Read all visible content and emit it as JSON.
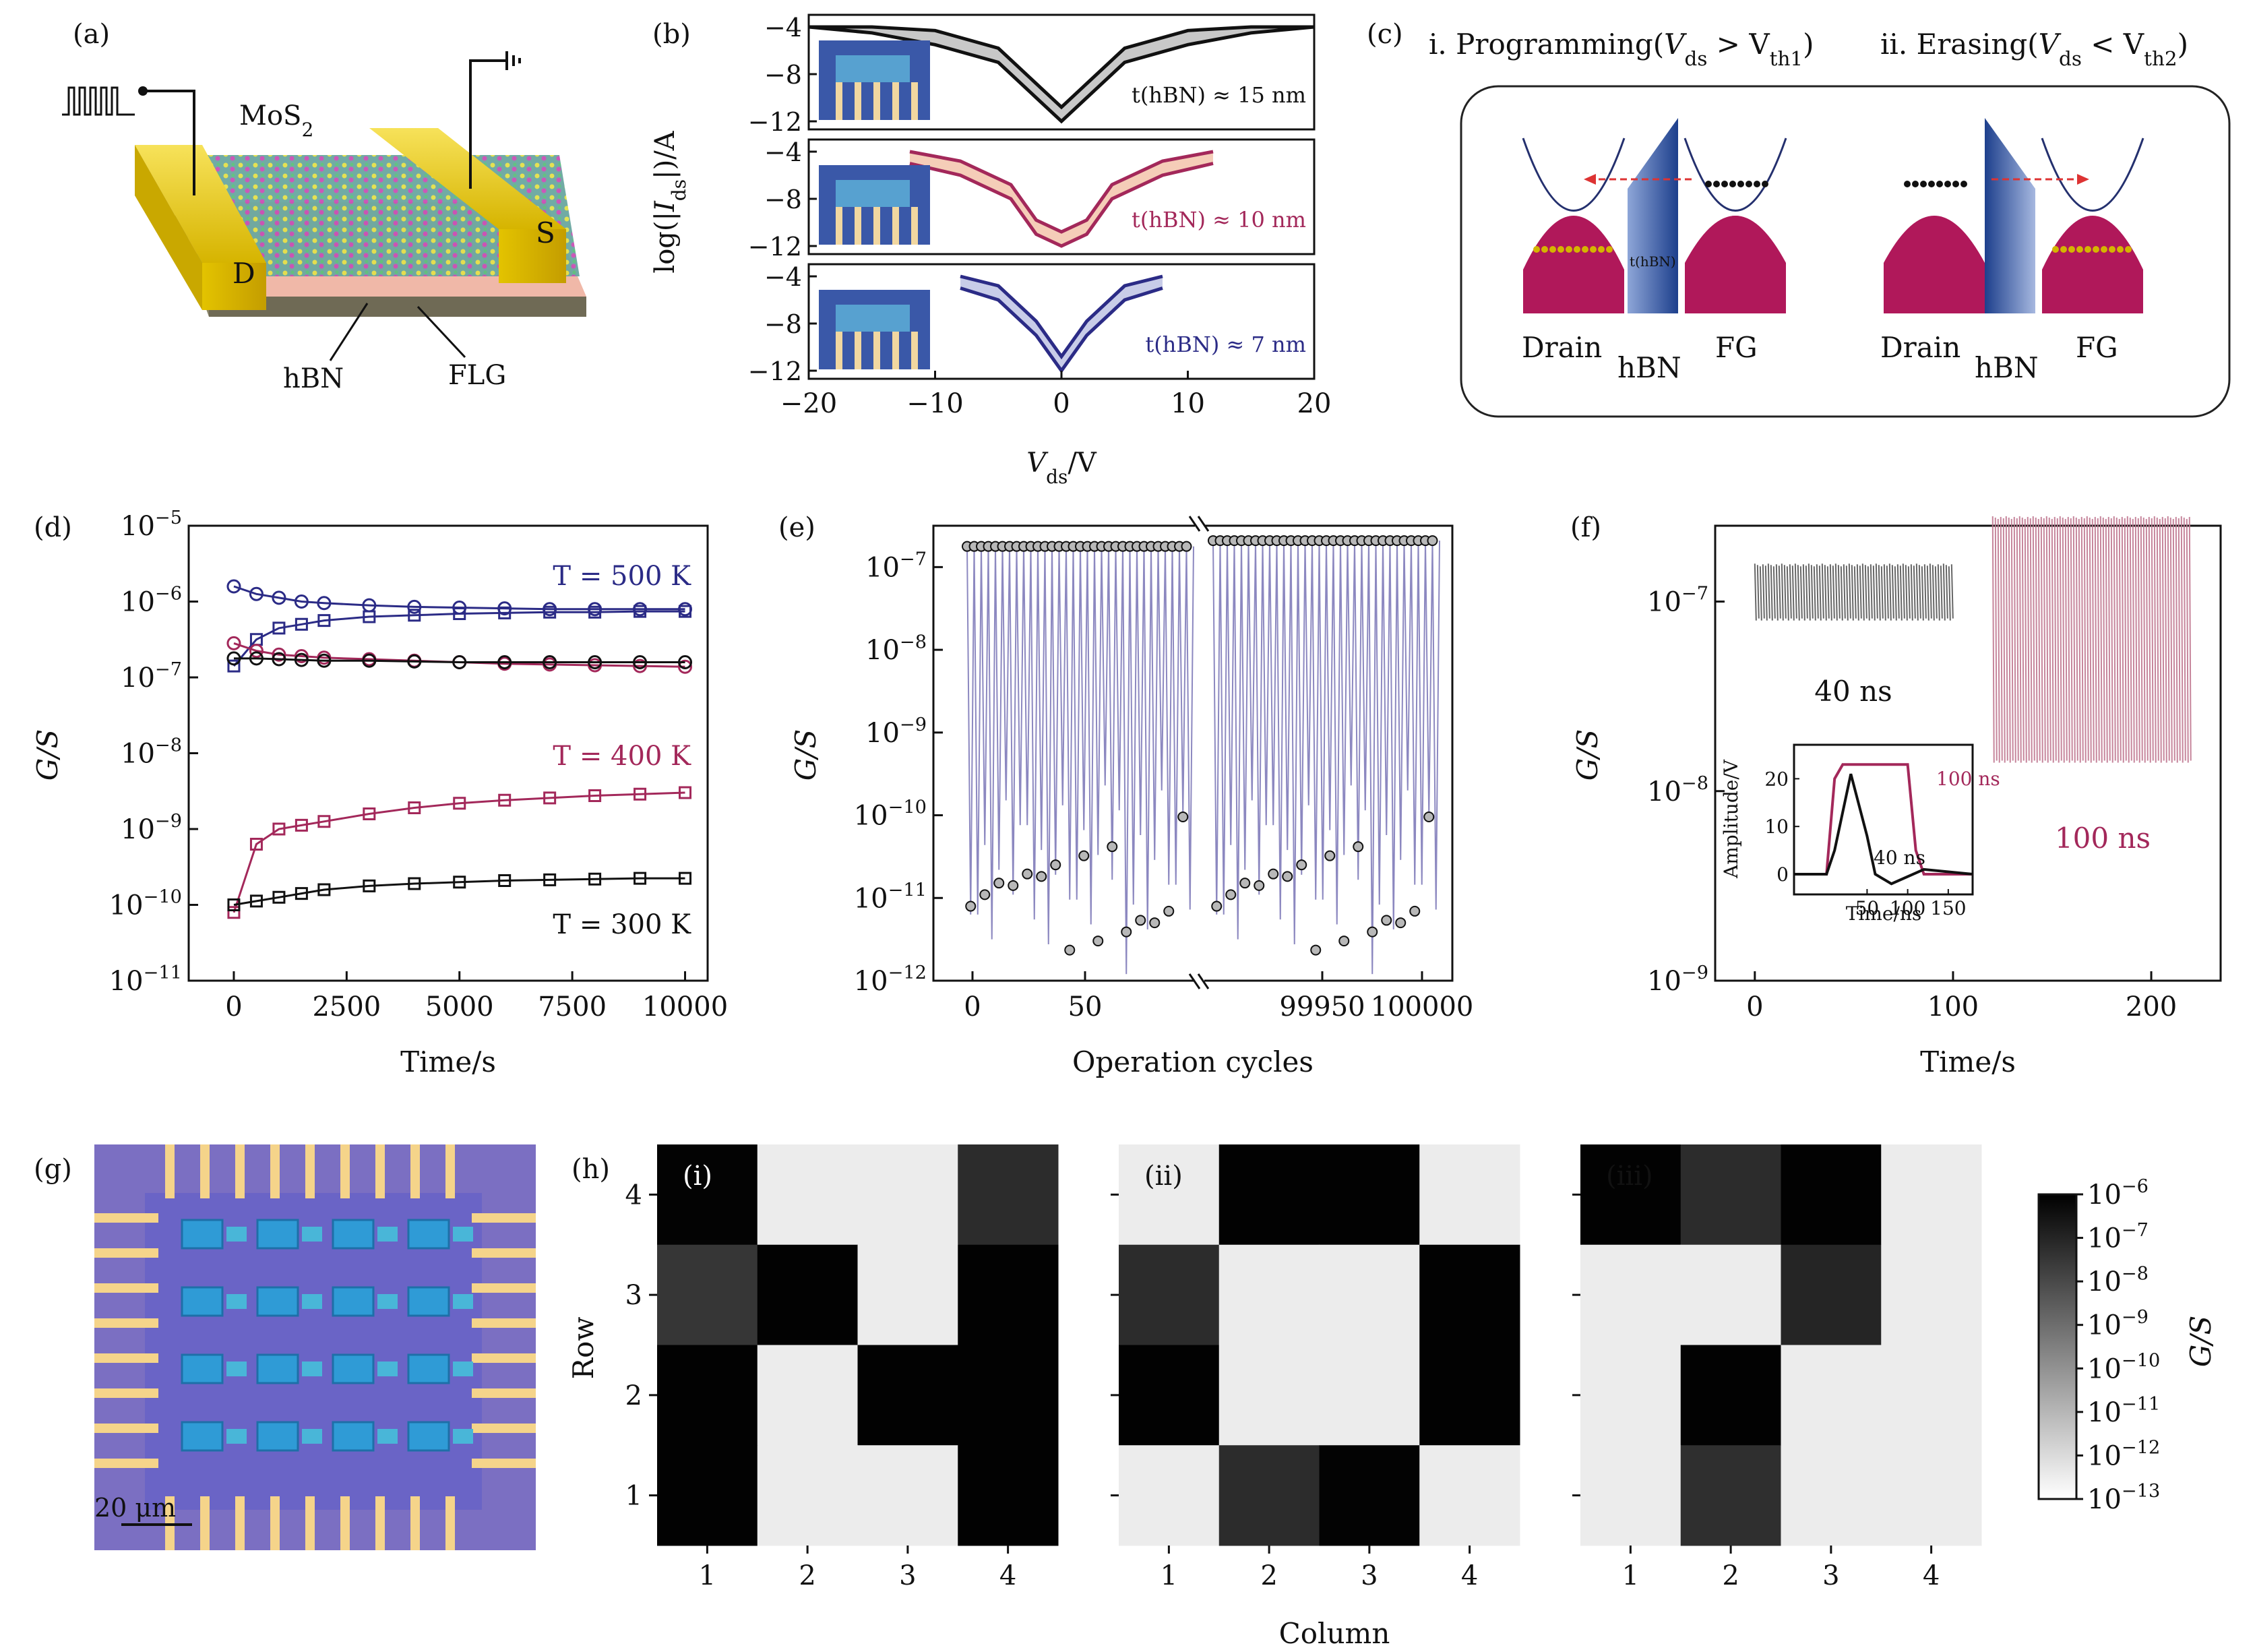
{
  "panels": {
    "a": {
      "label": "(a)",
      "mos2": "MoS",
      "mos2_sub": "2",
      "drain": "D",
      "source": "S",
      "hbn": "hBN",
      "flg": "FLG"
    },
    "b": {
      "label": "(b)",
      "ylabel": "log(|I",
      "ylabel_sub": "ds",
      "ylabel_end": "|)/A",
      "xlabel": "V",
      "xlabel_sub": "ds",
      "xlabel_end": "/V",
      "ann": [
        "t(hBN) ≈ 15 nm",
        "t(hBN) ≈ 10 nm",
        "t(hBN) ≈ 7 nm"
      ],
      "colors": [
        "#111111",
        "#a3285a",
        "#2b2b86"
      ]
    },
    "c": {
      "label": "(c)",
      "title1": "i. Programming(V",
      "title1_sub": "ds",
      "title1_mid": " > V",
      "title1_sub2": "th1",
      "title1_end": ")",
      "title2": "ii. Erasing(V",
      "title2_sub": "ds",
      "title2_mid": " < V",
      "title2_sub2": "th2",
      "title2_end": ")",
      "drain": "Drain",
      "hbn": "hBN",
      "fg": "FG",
      "thbn": "t(hBN)"
    },
    "d": {
      "label": "(d)",
      "ylabel": "G/S",
      "xlabel": "Time/s",
      "t500": "T = 500 K",
      "t400": "T = 400 K",
      "t300": "T = 300 K"
    },
    "e": {
      "label": "(e)",
      "ylabel": "G/S",
      "xlabel": "Operation cycles"
    },
    "f": {
      "label": "(f)",
      "ylabel": "G/S",
      "xlabel": "Time/s",
      "l40": "40 ns",
      "l100": "100 ns",
      "inset_ylabel": "Amplitude/V",
      "inset_xlabel": "Time/ns",
      "inset_100": "100 ns",
      "inset_40": "40 ns"
    },
    "g": {
      "label": "(g)",
      "scale": "20 μm"
    },
    "h": {
      "label": "(h)",
      "ylabel": "Row",
      "xlabel": "Column",
      "cbar_label": "G/S",
      "sub": [
        "(i)",
        "(ii)",
        "(iii)"
      ]
    }
  },
  "chart_data": [
    {
      "panel": "b",
      "type": "line",
      "xlabel": "Vds/V",
      "ylabel": "log(|Ids|)/A",
      "xlim": [
        -20,
        20
      ],
      "x_ticks": [
        "−20",
        "−10",
        "0",
        "10",
        "20"
      ],
      "y_ticks": [
        "−4",
        "−8",
        "−12"
      ],
      "series": [
        {
          "name": "t(hBN) ≈ 15 nm",
          "x": [
            -20,
            -15,
            -10,
            -5,
            -2,
            0,
            2,
            5,
            10,
            15,
            20
          ],
          "y": [
            -4,
            -4.5,
            -5.5,
            -7,
            -10,
            -12,
            -10,
            -7,
            -5.5,
            -4.5,
            -4
          ]
        },
        {
          "name": "t(hBN) ≈ 10 nm",
          "x": [
            -12,
            -8,
            -4,
            -2,
            0,
            2,
            4,
            8,
            12
          ],
          "y": [
            -5,
            -6,
            -8,
            -11,
            -12,
            -11,
            -8,
            -6,
            -5
          ]
        },
        {
          "name": "t(hBN) ≈ 7 nm",
          "x": [
            -8,
            -5,
            -2,
            0,
            2,
            5,
            8
          ],
          "y": [
            -5,
            -6,
            -9,
            -12,
            -9,
            -6,
            -5
          ]
        }
      ]
    },
    {
      "panel": "d",
      "type": "line",
      "xlabel": "Time/s",
      "ylabel": "G/S",
      "yscale": "log",
      "xlim": [
        -1000,
        10500
      ],
      "ylim_exp": [
        -11,
        -5
      ],
      "x_ticks": [
        0,
        2500,
        5000,
        7500,
        10000
      ],
      "y_ticks": [
        "10−5",
        "10−6",
        "10−7",
        "10−8",
        "10−9",
        "10−10",
        "10−11"
      ],
      "x": [
        0,
        500,
        1000,
        1500,
        2000,
        3000,
        4000,
        5000,
        6000,
        7000,
        8000,
        9000,
        10000
      ],
      "series": [
        {
          "color": "#2b2b86",
          "marker": "circle",
          "y_exp": [
            -5.8,
            -5.9,
            -5.95,
            -6.0,
            -6.02,
            -6.05,
            -6.07,
            -6.08,
            -6.09,
            -6.1,
            -6.1,
            -6.1,
            -6.1
          ]
        },
        {
          "color": "#2b2b86",
          "marker": "square",
          "y_exp": [
            -6.85,
            -6.5,
            -6.35,
            -6.3,
            -6.25,
            -6.2,
            -6.18,
            -6.16,
            -6.15,
            -6.14,
            -6.14,
            -6.13,
            -6.13
          ]
        },
        {
          "color": "#a3285a",
          "marker": "circle",
          "y_exp": [
            -6.55,
            -6.65,
            -6.7,
            -6.72,
            -6.74,
            -6.76,
            -6.78,
            -6.8,
            -6.82,
            -6.83,
            -6.84,
            -6.85,
            -6.86
          ]
        },
        {
          "color": "#111111",
          "marker": "circle",
          "y_exp": [
            -6.75,
            -6.75,
            -6.76,
            -6.77,
            -6.78,
            -6.78,
            -6.79,
            -6.8,
            -6.8,
            -6.8,
            -6.8,
            -6.8,
            -6.8
          ]
        },
        {
          "color": "#a3285a",
          "marker": "square",
          "y_exp": [
            -10.1,
            -9.2,
            -9.0,
            -8.95,
            -8.9,
            -8.8,
            -8.72,
            -8.66,
            -8.62,
            -8.59,
            -8.56,
            -8.54,
            -8.52
          ]
        },
        {
          "color": "#111111",
          "marker": "square",
          "y_exp": [
            -10.0,
            -9.95,
            -9.9,
            -9.85,
            -9.8,
            -9.75,
            -9.72,
            -9.7,
            -9.68,
            -9.67,
            -9.66,
            -9.65,
            -9.65
          ]
        }
      ]
    },
    {
      "panel": "e",
      "type": "scatter",
      "xlabel": "Operation cycles",
      "ylabel": "G/S",
      "yscale": "log",
      "ylim_exp": [
        -12,
        -6.5
      ],
      "x_ticks": [
        "0",
        "50",
        "99950",
        "100000"
      ],
      "y_ticks": [
        "10−7",
        "10−8",
        "10−9",
        "10−10",
        "10−11",
        "10−12"
      ],
      "on_level_exp": [
        -6.75,
        -6.7
      ],
      "off_level_exp": [
        -11.2,
        -11.2
      ]
    },
    {
      "panel": "f",
      "type": "line",
      "xlabel": "Time/s",
      "ylabel": "G/S",
      "yscale": "log",
      "xlim": [
        -20,
        235
      ],
      "ylim_exp": [
        -9,
        -6.6
      ],
      "x_ticks": [
        0,
        100,
        200
      ],
      "y_ticks": [
        "10−7",
        "10−8",
        "10−9"
      ],
      "series": [
        {
          "name": "40 ns",
          "x_range": [
            0,
            100
          ],
          "y_band_exp": [
            -7.1,
            -6.8
          ],
          "color": "#555555"
        },
        {
          "name": "100 ns",
          "x_range": [
            120,
            220
          ],
          "y_band_exp": [
            -7.85,
            -6.55
          ],
          "color": "#c07890"
        }
      ],
      "inset": {
        "xlabel": "Time/ns",
        "ylabel": "Amplitude/V",
        "x_ticks": [
          50,
          100,
          150
        ],
        "y_ticks": [
          0,
          10,
          20
        ],
        "series": [
          {
            "name": "100 ns",
            "color": "#a3285a",
            "x": [
              -40,
              0,
              10,
              20,
              100,
              110,
              120,
              180
            ],
            "y": [
              0,
              0,
              20,
              23,
              23,
              5,
              0,
              0
            ]
          },
          {
            "name": "40 ns",
            "color": "#111111",
            "x": [
              -40,
              0,
              10,
              30,
              50,
              60,
              80,
              120,
              180
            ],
            "y": [
              0,
              0,
              5,
              21,
              8,
              0,
              -2,
              1,
              0
            ]
          }
        ]
      }
    },
    {
      "panel": "h",
      "type": "heatmap",
      "xlabel": "Column",
      "ylabel": "Row",
      "x_ticks": [
        "1",
        "2",
        "3",
        "4"
      ],
      "y_ticks": [
        "4",
        "3",
        "2",
        "1"
      ],
      "colorbar_ticks": [
        "10−6",
        "10−7",
        "10−8",
        "10−9",
        "10−10",
        "10−11",
        "10−12",
        "10−13"
      ],
      "maps": [
        {
          "name": "(i)",
          "rows_top_to_bottom": [
            [
              -6.1,
              -13,
              -13,
              -7.3
            ],
            [
              -7.6,
              -6.05,
              -13,
              -6.05
            ],
            [
              -6.05,
              -13,
              -6.05,
              -6.05
            ],
            [
              -6.05,
              -13,
              -13,
              -6.05
            ]
          ]
        },
        {
          "name": "(ii)",
          "rows_top_to_bottom": [
            [
              -13,
              -6.05,
              -6.05,
              -13
            ],
            [
              -7.3,
              -13,
              -13,
              -6.05
            ],
            [
              -6.05,
              -13,
              -13,
              -6.05
            ],
            [
              -13,
              -7.3,
              -6.1,
              -13
            ]
          ]
        },
        {
          "name": "(iii)",
          "rows_top_to_bottom": [
            [
              -6.05,
              -7.3,
              -6.05,
              -13
            ],
            [
              -13,
              -13,
              -7.1,
              -13
            ],
            [
              -13,
              -6.05,
              -13,
              -13
            ],
            [
              -13,
              -7.4,
              -13,
              -13
            ]
          ]
        }
      ]
    }
  ]
}
